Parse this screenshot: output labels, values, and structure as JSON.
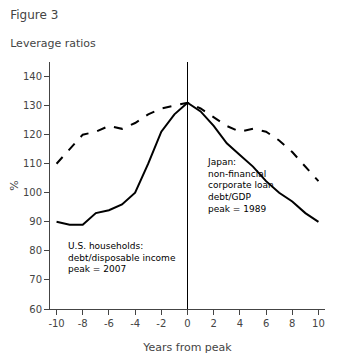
{
  "chart_data": {
    "type": "line",
    "title": "Figure 3",
    "subtitle": "Leverage ratios",
    "xlabel": "Years from peak",
    "ylabel": "%",
    "x": [
      -10,
      -9,
      -8,
      -7,
      -6,
      -5,
      -4,
      -3,
      -2,
      -1,
      0,
      1,
      2,
      3,
      4,
      5,
      6,
      7,
      8,
      9,
      10
    ],
    "series": [
      {
        "color": "#000000",
        "line_style": "solid",
        "values": [
          90,
          89,
          89,
          93,
          94,
          96,
          100,
          110,
          121,
          127,
          131,
          128,
          123,
          117,
          113,
          109,
          104,
          100,
          97,
          93,
          90
        ]
      },
      {
        "color": "#000000",
        "line_style": "dashed",
        "values": [
          110,
          115,
          120,
          121,
          123,
          122,
          124,
          127,
          129,
          130,
          131,
          129,
          126,
          123,
          121,
          122,
          121,
          118,
          114,
          109,
          104
        ]
      }
    ],
    "annotations": [
      "U.S. households:\ndebt/disposable income\npeak = 2007",
      "Japan:\nnon-financial\ncorporate loan\ndebt/GDP\npeak = 1989"
    ],
    "vline": 0,
    "xlim": [
      -10.5,
      10.5
    ],
    "ylim": [
      60,
      145
    ],
    "xticks": [
      -10,
      -8,
      -6,
      -4,
      -2,
      0,
      2,
      4,
      6,
      8,
      10
    ],
    "yticks": [
      60,
      70,
      80,
      90,
      100,
      110,
      120,
      130,
      140
    ],
    "grid": false
  }
}
